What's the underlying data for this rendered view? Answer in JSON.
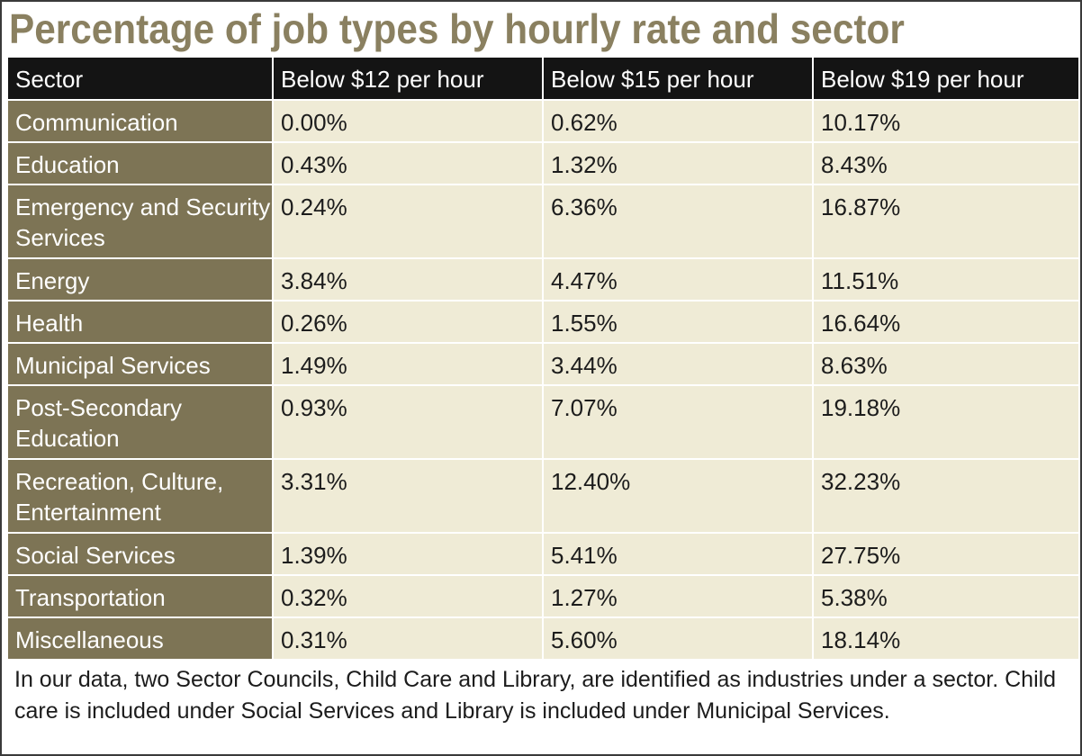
{
  "chart_data": {
    "type": "table",
    "title": "Percentage of job types by hourly rate and sector",
    "columns": [
      "Sector",
      "Below $12 per hour",
      "Below $15 per hour",
      "Below $19 per hour"
    ],
    "rows": [
      {
        "sector": "Communication",
        "values": [
          "0.00%",
          "0.62%",
          "10.17%"
        ]
      },
      {
        "sector": "Education",
        "values": [
          "0.43%",
          "1.32%",
          "8.43%"
        ]
      },
      {
        "sector": "Emergency and Security Services",
        "values": [
          "0.24%",
          "6.36%",
          "16.87%"
        ]
      },
      {
        "sector": "Energy",
        "values": [
          "3.84%",
          "4.47%",
          "11.51%"
        ]
      },
      {
        "sector": "Health",
        "values": [
          "0.26%",
          "1.55%",
          "16.64%"
        ]
      },
      {
        "sector": "Municipal Services",
        "values": [
          "1.49%",
          "3.44%",
          "8.63%"
        ]
      },
      {
        "sector": "Post-Secondary Education",
        "values": [
          "0.93%",
          "7.07%",
          "19.18%"
        ]
      },
      {
        "sector": "Recreation, Culture, Entertainment",
        "values": [
          "3.31%",
          "12.40%",
          "32.23%"
        ]
      },
      {
        "sector": "Social Services",
        "values": [
          "1.39%",
          "5.41%",
          "27.75%"
        ]
      },
      {
        "sector": "Transportation",
        "values": [
          "0.32%",
          "1.27%",
          "5.38%"
        ]
      },
      {
        "sector": "Miscellaneous",
        "values": [
          "0.31%",
          "5.60%",
          "18.14%"
        ]
      }
    ],
    "footnote": "In our data, two Sector Councils, Child Care and Library, are identified as industries under a sector.  Child care is included under Social Services and Library is included under Municipal Services."
  },
  "colors": {
    "title": "#8a8060",
    "header_bg": "#141414",
    "sector_bg": "#7d7455",
    "cell_bg": "#efebd6"
  }
}
